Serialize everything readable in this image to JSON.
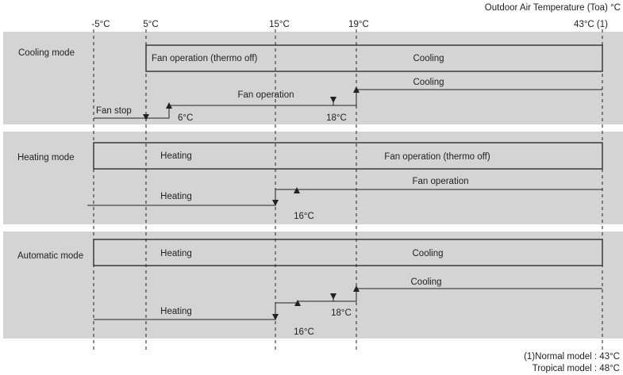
{
  "axis": {
    "title": "Outdoor Air Temperature (Toa) °C",
    "ticks": [
      "-5°C",
      "5°C",
      "15°C",
      "19°C",
      "43°C (1)"
    ]
  },
  "cooling": {
    "mode_label": "Cooling mode",
    "box_left": "Fan operation (thermo off)",
    "box_right": "Cooling",
    "upper_label": "Cooling",
    "middle_label": "Fan operation",
    "lower_label": "Fan stop",
    "temp_6": "6°C",
    "temp_18": "18°C"
  },
  "heating": {
    "mode_label": "Heating mode",
    "box_left": "Heating",
    "box_right": "Fan operation (thermo off)",
    "upper_label": "Fan operation",
    "lower_label": "Heating",
    "temp_16": "16°C"
  },
  "automatic": {
    "mode_label": "Automatic mode",
    "box_left": "Heating",
    "box_right": "Cooling",
    "upper_label": "Cooling",
    "lower_label": "Heating",
    "temp_18": "18°C",
    "temp_16": "16°C"
  },
  "notes": {
    "normal": "(1)Normal model : 43°C",
    "tropical": "Tropical model : 48°C"
  },
  "colors": {
    "band": "#d4d4d4",
    "ink": "#222222"
  }
}
